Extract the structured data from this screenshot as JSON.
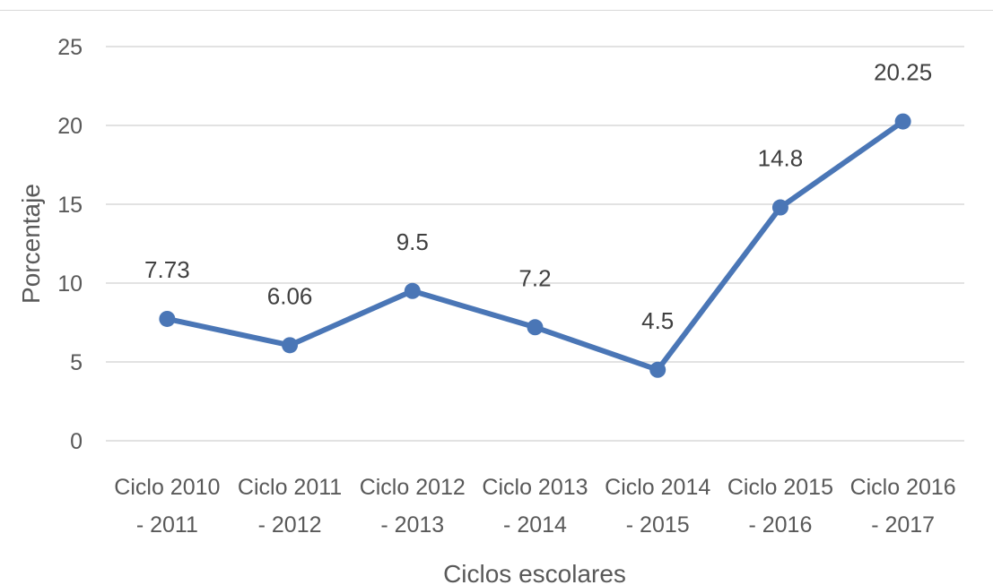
{
  "chart_data": {
    "type": "line",
    "title": "",
    "xlabel": "Ciclos escolares",
    "ylabel": "Porcentaje",
    "ylim": [
      0,
      25
    ],
    "yticks": [
      0,
      5,
      10,
      15,
      20,
      25
    ],
    "grid": true,
    "legend": "none",
    "categories": [
      [
        "Ciclo 2010",
        "- 2011"
      ],
      [
        "Ciclo 2011",
        "- 2012"
      ],
      [
        "Ciclo 2012",
        "- 2013"
      ],
      [
        "Ciclo 2013",
        "- 2014"
      ],
      [
        "Ciclo 2014",
        "- 2015"
      ],
      [
        "Ciclo 2015",
        "- 2016"
      ],
      [
        "Ciclo 2016",
        "- 2017"
      ]
    ],
    "series": [
      {
        "values": [
          7.73,
          6.06,
          9.5,
          7.2,
          4.5,
          14.8,
          20.25
        ],
        "labels": [
          "7.73",
          "6.06",
          "9.5",
          "7.2",
          "4.5",
          "14.8",
          "20.25"
        ],
        "color": "#4a76b6"
      }
    ],
    "colors": {
      "grid": "#d9d9d9",
      "text": "#595959",
      "line": "#4a76b6"
    }
  }
}
